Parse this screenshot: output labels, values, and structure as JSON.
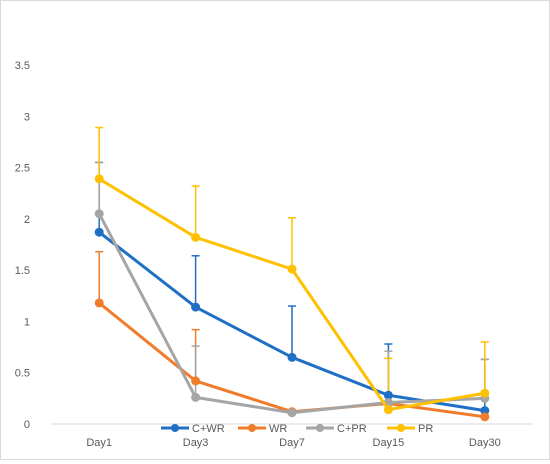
{
  "chart_data": {
    "type": "line",
    "title": "",
    "xlabel": "",
    "ylabel": "",
    "categories": [
      "Day1",
      "Day3",
      "Day7",
      "Day15",
      "Day30"
    ],
    "ylim": [
      0,
      3.5
    ],
    "yticks": [
      0,
      0.5,
      1,
      1.5,
      2,
      2.5,
      3,
      3.5
    ],
    "ytick_labels": [
      "0",
      "0.5",
      "1",
      "1.5",
      "2",
      "2.5",
      "3",
      "3.5"
    ],
    "grid": false,
    "legend_position": "bottom",
    "error_bars": "upper",
    "series": [
      {
        "name": "C+WR",
        "color": "#1f6fc5",
        "values": [
          1.87,
          1.14,
          0.65,
          0.28,
          0.13
        ],
        "errors": [
          0.68,
          0.5,
          0.5,
          0.5,
          0.5
        ]
      },
      {
        "name": "WR",
        "color": "#f07c2b",
        "values": [
          1.18,
          0.42,
          0.12,
          0.2,
          0.07
        ],
        "errors": [
          0.5,
          0.5,
          0.0,
          0.0,
          0.0
        ]
      },
      {
        "name": "C+PR",
        "color": "#a5a5a5",
        "values": [
          2.05,
          0.26,
          0.11,
          0.21,
          0.25
        ],
        "errors": [
          0.5,
          0.5,
          0.0,
          0.5,
          0.38
        ]
      },
      {
        "name": "PR",
        "color": "#ffc000",
        "values": [
          2.39,
          1.82,
          1.51,
          0.14,
          0.3
        ],
        "errors": [
          0.5,
          0.5,
          0.5,
          0.5,
          0.5
        ]
      }
    ]
  }
}
